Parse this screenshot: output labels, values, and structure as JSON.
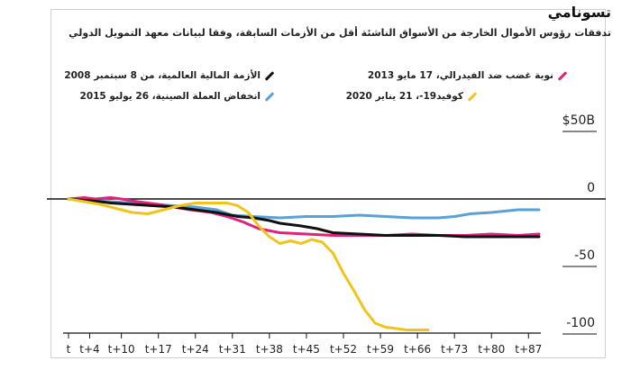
{
  "title": "تسونامي",
  "subtitle": "تدفقات رؤوس الأموال الخارجة من الأسواق الناشئة أقل من الأزمات السابقة، وفقا لبيانات معهد التمويل الدولي",
  "colors": {
    "gfc": "#111111",
    "taper": "#e0227a",
    "china": "#5aa1d8",
    "covid": "#f0c419"
  },
  "chart_data": {
    "type": "line",
    "x_tick_labels": [
      "t",
      "t+4",
      "t+10",
      "t+17",
      "t+24",
      "t+31",
      "t+38",
      "t+45",
      "t+52",
      "t+59",
      "t+66",
      "t+73",
      "t+80",
      "t+87"
    ],
    "x_ticks": [
      0,
      4,
      10,
      17,
      24,
      31,
      38,
      45,
      52,
      59,
      66,
      73,
      80,
      87
    ],
    "xlim": [
      0,
      89
    ],
    "y_tick_labels": [
      "$50B",
      "0",
      "-50",
      "-100"
    ],
    "y_ticks": [
      50,
      0,
      -50,
      -100
    ],
    "ylim": [
      -110,
      60
    ],
    "series": [
      {
        "key": "gfc",
        "name": "الأزمة المالية العالمية، من 8 سبتمبر 2008",
        "x": [
          0,
          3,
          6,
          8,
          12,
          16,
          20,
          24,
          28,
          32,
          35,
          38,
          40,
          44,
          47,
          50,
          55,
          60,
          65,
          70,
          75,
          80,
          85,
          89
        ],
        "y": [
          0,
          -1,
          -2,
          -3,
          -4,
          -5,
          -6,
          -8,
          -10,
          -13,
          -14,
          -16,
          -18,
          -20,
          -22,
          -25,
          -26,
          -27,
          -27,
          -27,
          -28,
          -28,
          -28,
          -28
        ]
      },
      {
        "key": "taper",
        "name": "نوبة غضب ضد الفيدرالي، 17 مايو 2013",
        "x": [
          0,
          3,
          5,
          8,
          10,
          13,
          17,
          20,
          23,
          27,
          30,
          33,
          36,
          40,
          45,
          50,
          55,
          60,
          65,
          70,
          75,
          80,
          85,
          89
        ],
        "y": [
          0,
          1,
          0,
          1,
          0,
          -2,
          -4,
          -6,
          -8,
          -10,
          -13,
          -17,
          -22,
          -25,
          -26,
          -27,
          -27,
          -27,
          -26,
          -27,
          -27,
          -26,
          -27,
          -26
        ]
      },
      {
        "key": "china",
        "name": "انخفاض العملة الصينية، 26 يوليو 2015",
        "x": [
          0,
          4,
          8,
          12,
          16,
          20,
          24,
          28,
          31,
          35,
          40,
          45,
          50,
          55,
          60,
          65,
          70,
          73,
          76,
          80,
          85,
          89
        ],
        "y": [
          0,
          -1,
          -2,
          -3,
          -4,
          -5,
          -6,
          -8,
          -12,
          -13,
          -14,
          -13,
          -13,
          -12,
          -13,
          -14,
          -14,
          -13,
          -11,
          -10,
          -8,
          -8
        ]
      },
      {
        "key": "covid",
        "name": "كوفيد19-، 21 يناير 2020",
        "x": [
          0,
          3,
          6,
          9,
          12,
          15,
          18,
          21,
          24,
          27,
          30,
          32,
          34,
          36,
          38,
          40,
          42,
          44,
          46,
          48,
          50,
          52,
          54,
          56,
          58,
          60,
          62,
          64,
          66,
          68
        ],
        "y": [
          0,
          -2,
          -4,
          -7,
          -10,
          -11,
          -8,
          -5,
          -3,
          -3,
          -3,
          -5,
          -10,
          -20,
          -28,
          -33,
          -31,
          -33,
          -30,
          -32,
          -40,
          -55,
          -68,
          -82,
          -92,
          -95,
          -96,
          -97,
          -97,
          -97
        ]
      }
    ]
  }
}
